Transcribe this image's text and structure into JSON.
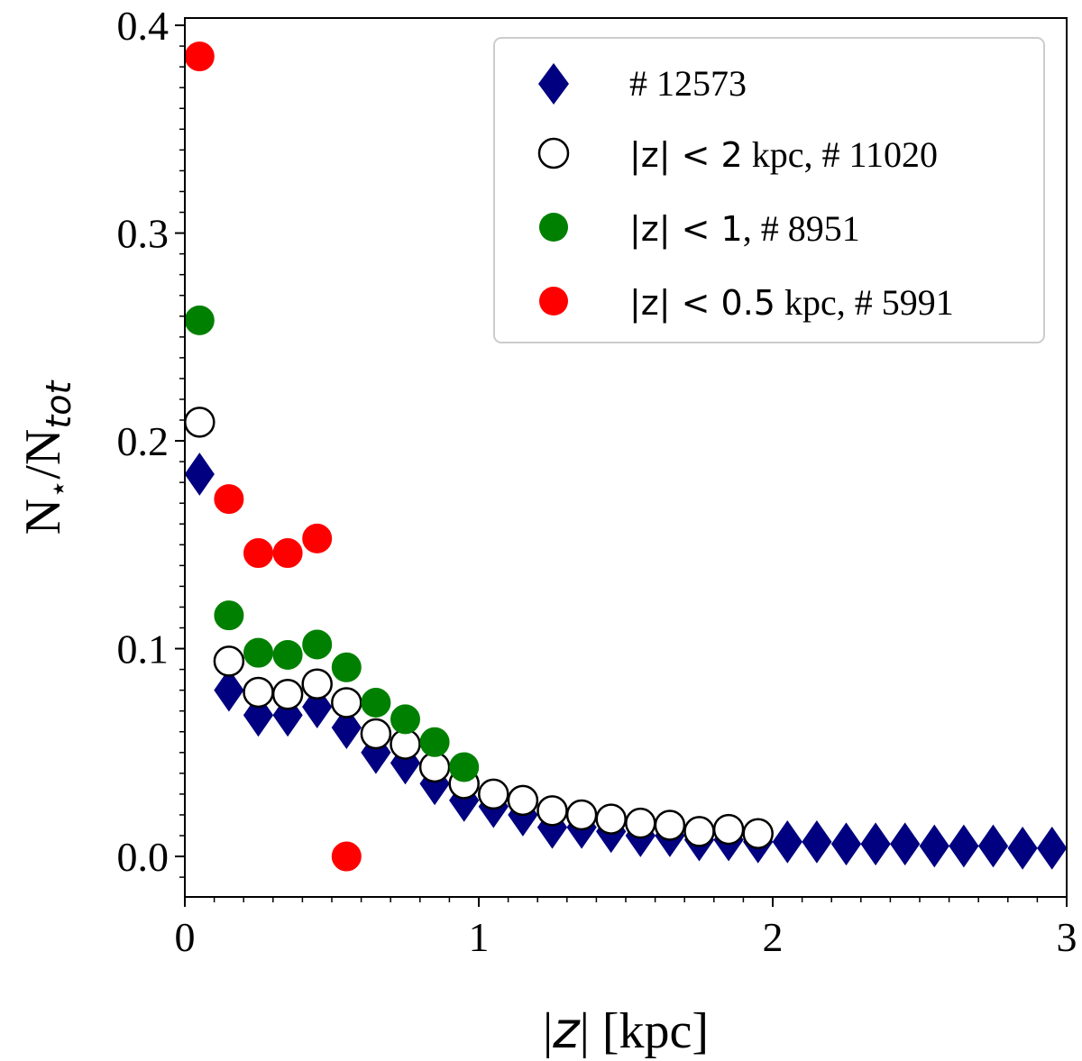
{
  "chart_data": {
    "type": "scatter",
    "xlabel": "|z| [kpc]",
    "ylabel": "N⋆/Ntot",
    "xlim": [
      0,
      3
    ],
    "ylim": [
      -0.0195,
      0.4035
    ],
    "xticks": [
      0,
      1,
      2,
      3
    ],
    "xtick_labels": [
      "0",
      "1",
      "2",
      "3"
    ],
    "yticks": [
      0.0,
      0.1,
      0.2,
      0.3,
      0.4
    ],
    "ytick_labels": [
      "0.0",
      "0.1",
      "0.2",
      "0.3",
      "0.4"
    ],
    "grid": false,
    "legend_position": "top-right",
    "series": [
      {
        "name": "# 12573",
        "legend_label": "# 12573",
        "marker": "diamond",
        "color": "#000080",
        "edge": "#000080",
        "x": [
          0.05,
          0.15,
          0.25,
          0.35,
          0.45,
          0.55,
          0.65,
          0.75,
          0.85,
          0.95,
          1.05,
          1.15,
          1.25,
          1.35,
          1.45,
          1.55,
          1.65,
          1.75,
          1.85,
          1.95,
          2.05,
          2.15,
          2.25,
          2.35,
          2.45,
          2.55,
          2.65,
          2.75,
          2.85,
          2.95
        ],
        "y": [
          0.184,
          0.08,
          0.068,
          0.068,
          0.072,
          0.062,
          0.05,
          0.045,
          0.035,
          0.027,
          0.024,
          0.02,
          0.014,
          0.014,
          0.012,
          0.01,
          0.01,
          0.008,
          0.008,
          0.007,
          0.007,
          0.007,
          0.006,
          0.006,
          0.006,
          0.005,
          0.005,
          0.005,
          0.004,
          0.004
        ]
      },
      {
        "name": "|z| < 2 kpc, # 11020",
        "legend_label_math": "|z| < 2",
        "legend_label_text": " kpc, # 11020",
        "marker": "circle",
        "color": "#ffffff",
        "edge": "#000000",
        "x": [
          0.05,
          0.15,
          0.25,
          0.35,
          0.45,
          0.55,
          0.65,
          0.75,
          0.85,
          0.95,
          1.05,
          1.15,
          1.25,
          1.35,
          1.45,
          1.55,
          1.65,
          1.75,
          1.85,
          1.95
        ],
        "y": [
          0.209,
          0.094,
          0.079,
          0.078,
          0.083,
          0.074,
          0.059,
          0.054,
          0.043,
          0.035,
          0.03,
          0.027,
          0.022,
          0.02,
          0.018,
          0.016,
          0.015,
          0.012,
          0.013,
          0.011
        ]
      },
      {
        "name": "|z| < 1, # 8951",
        "legend_label_math": "|z| < 1",
        "legend_label_text": ", # 8951",
        "marker": "circle",
        "color": "#008000",
        "edge": "#008000",
        "x": [
          0.05,
          0.15,
          0.25,
          0.35,
          0.45,
          0.55,
          0.65,
          0.75,
          0.85,
          0.95
        ],
        "y": [
          0.258,
          0.116,
          0.098,
          0.097,
          0.102,
          0.091,
          0.074,
          0.066,
          0.055,
          0.043
        ]
      },
      {
        "name": "|z| < 0.5 kpc, # 5991",
        "legend_label_math": "|z| < 0.5",
        "legend_label_text": " kpc, # 5991",
        "marker": "circle",
        "color": "#ff0000",
        "edge": "#ff0000",
        "x": [
          0.05,
          0.15,
          0.25,
          0.35,
          0.45,
          0.55
        ],
        "y": [
          0.385,
          0.172,
          0.146,
          0.146,
          0.153,
          0.0
        ]
      }
    ]
  }
}
